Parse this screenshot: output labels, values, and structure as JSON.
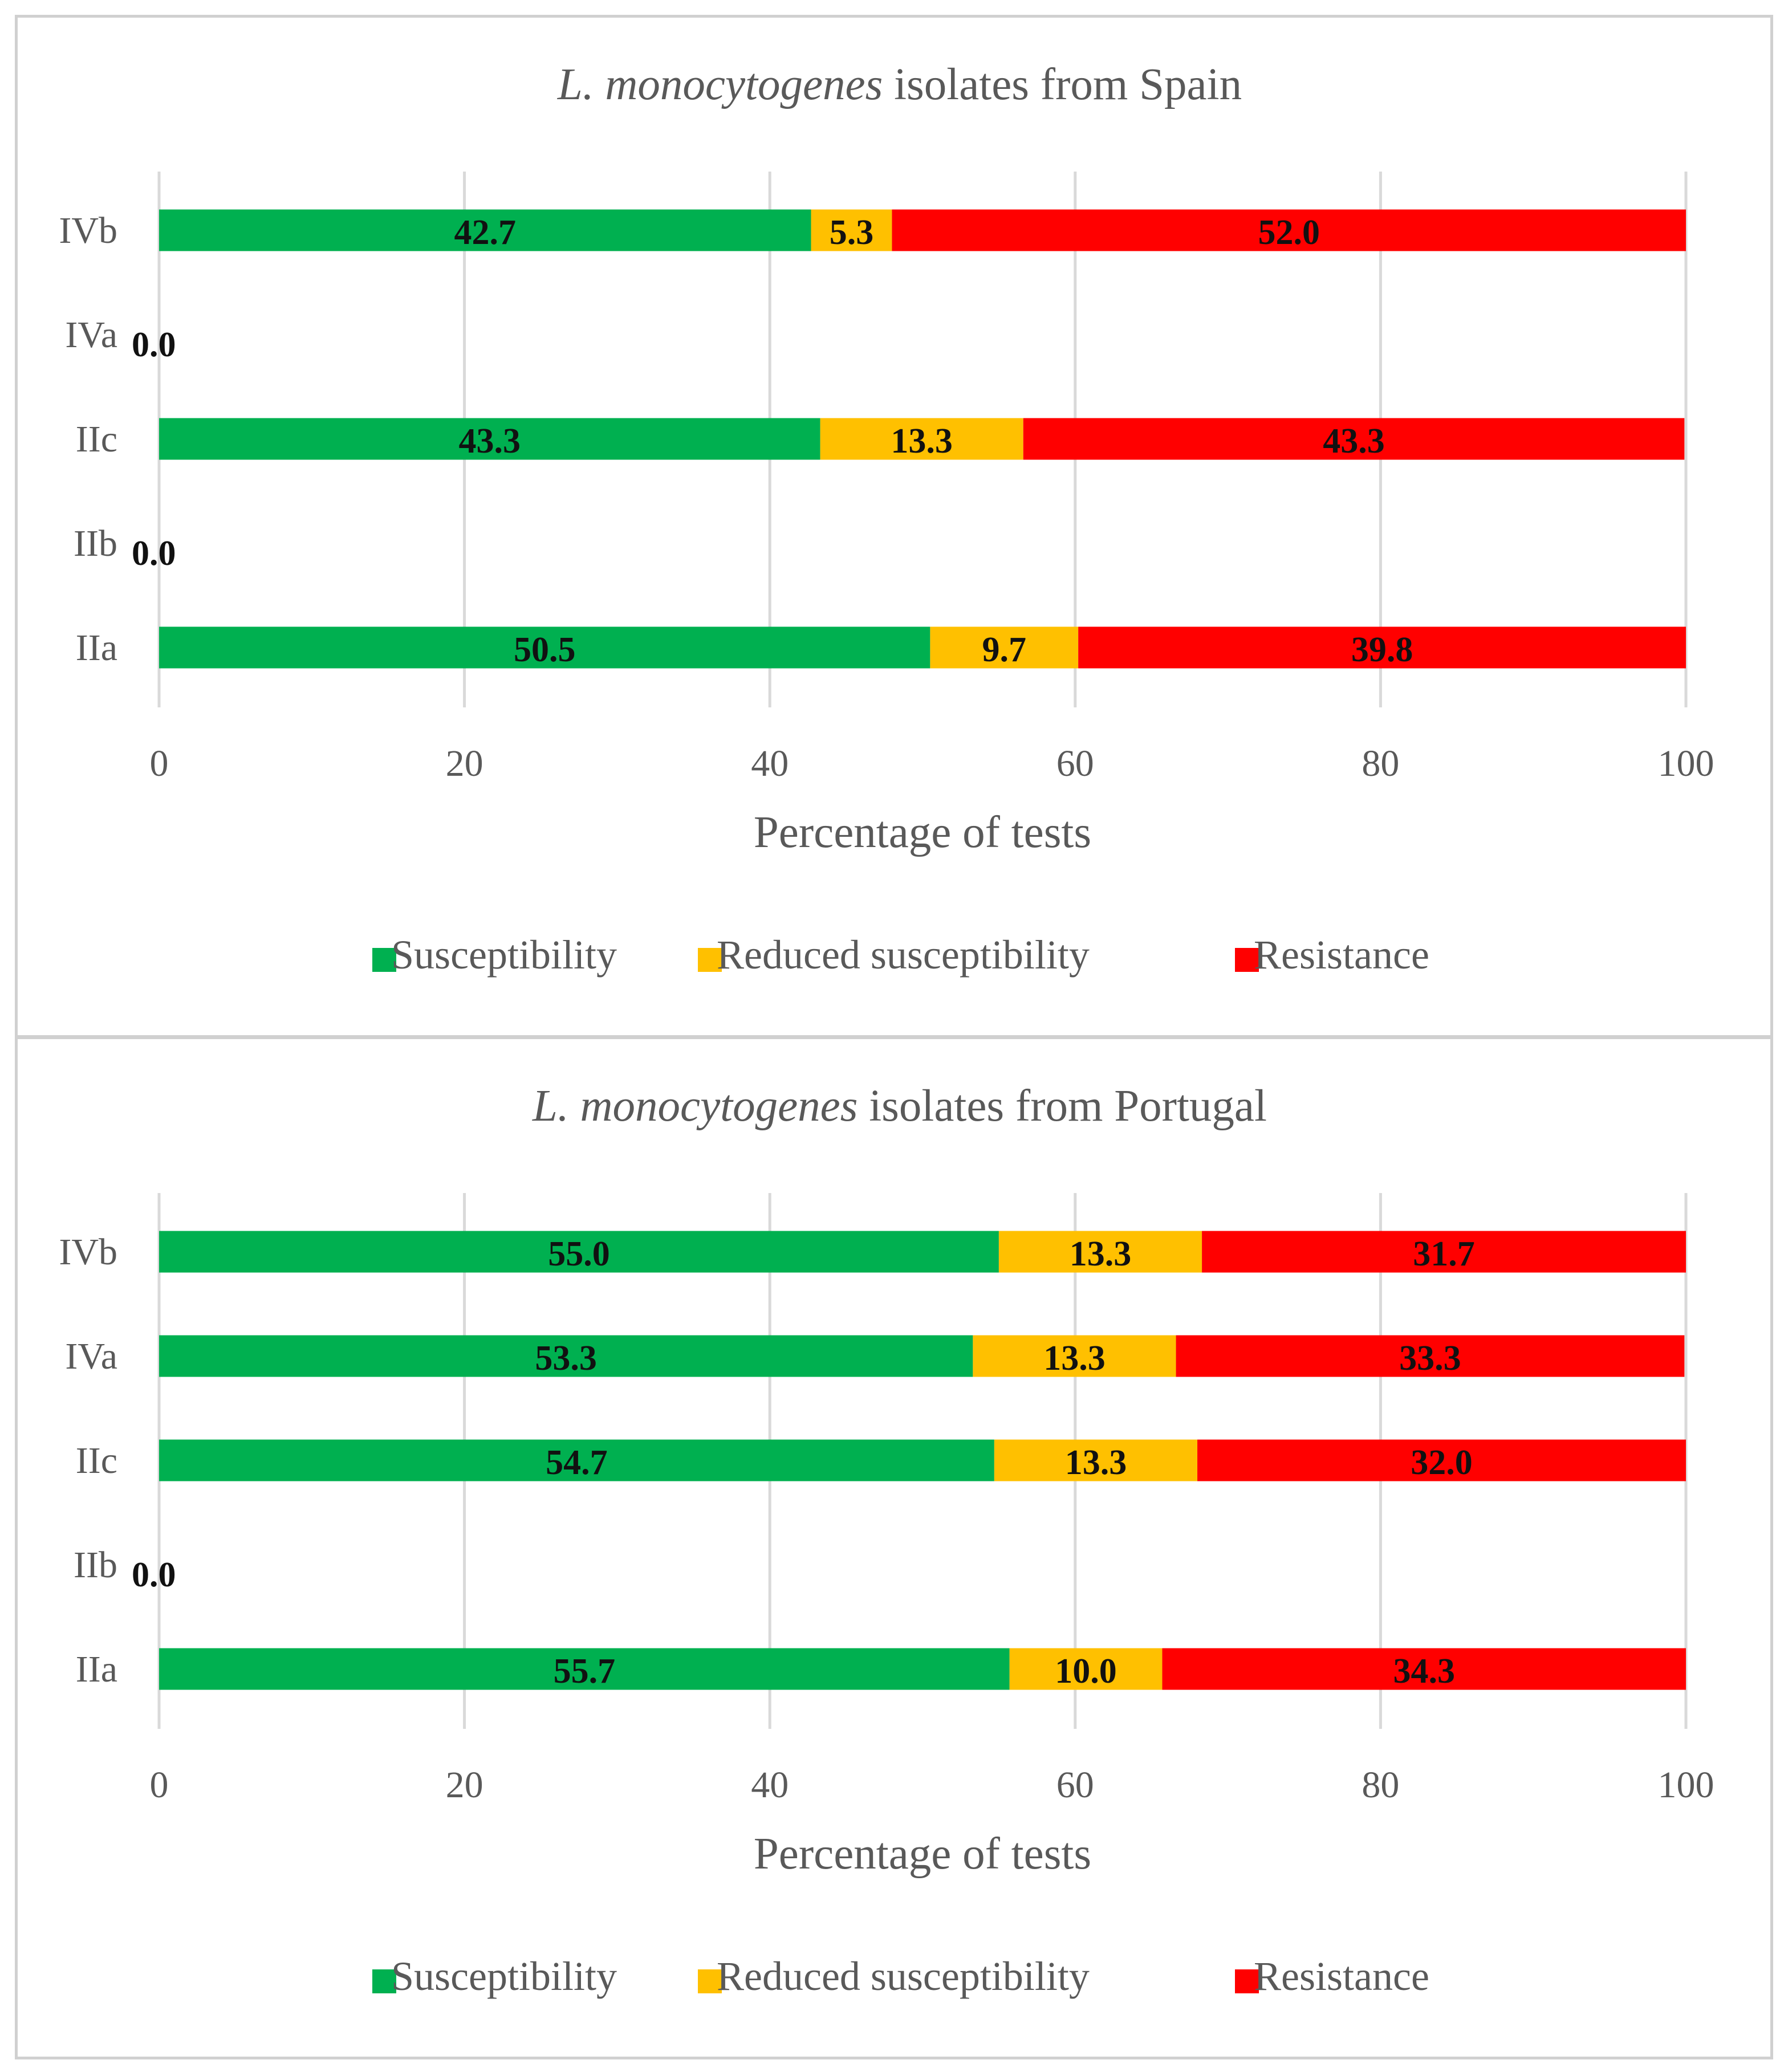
{
  "chart_data": [
    {
      "type": "bar",
      "orientation": "horizontal",
      "stacked": true,
      "title_italic": "L. monocytogenes",
      "title_rest": " isolates from Spain",
      "xlabel": "Percentage of tests",
      "ylabel": "",
      "xlim": [
        0,
        100
      ],
      "xticks": [
        0,
        20,
        40,
        60,
        80,
        100
      ],
      "grid": true,
      "legend_position": "bottom",
      "categories": [
        "IVb",
        "IVa",
        "IIc",
        "IIb",
        "IIa"
      ],
      "series": [
        {
          "name": "Susceptibility",
          "color": "#00b050",
          "values": [
            42.7,
            0,
            43.3,
            0,
            50.5
          ]
        },
        {
          "name": "Reduced susceptibility",
          "color": "#ffc000",
          "values": [
            5.3,
            0,
            13.3,
            0,
            9.7
          ]
        },
        {
          "name": "Resistance",
          "color": "#ff0000",
          "values": [
            52.0,
            0,
            43.3,
            0,
            39.8
          ]
        }
      ],
      "value_labels": [
        [
          "42.7",
          "5.3",
          "52.0"
        ],
        [
          "0.0"
        ],
        [
          "43.3",
          "13.3",
          "43.3"
        ],
        [
          "0.0"
        ],
        [
          "50.5",
          "9.7",
          "39.8"
        ]
      ]
    },
    {
      "type": "bar",
      "orientation": "horizontal",
      "stacked": true,
      "title_italic": "L. monocytogenes",
      "title_rest": " isolates from Portugal",
      "xlabel": "Percentage of tests",
      "ylabel": "",
      "xlim": [
        0,
        100
      ],
      "xticks": [
        0,
        20,
        40,
        60,
        80,
        100
      ],
      "grid": true,
      "legend_position": "bottom",
      "categories": [
        "IVb",
        "IVa",
        "IIc",
        "IIb",
        "IIa"
      ],
      "series": [
        {
          "name": "Susceptibility",
          "color": "#00b050",
          "values": [
            55.0,
            53.3,
            54.7,
            0,
            55.7
          ]
        },
        {
          "name": "Reduced susceptibility",
          "color": "#ffc000",
          "values": [
            13.3,
            13.3,
            13.3,
            0,
            10.0
          ]
        },
        {
          "name": "Resistance",
          "color": "#ff0000",
          "values": [
            31.7,
            33.3,
            32.0,
            0,
            34.3
          ]
        }
      ],
      "value_labels": [
        [
          "55.0",
          "13.3",
          "31.7"
        ],
        [
          "53.3",
          "13.3",
          "33.3"
        ],
        [
          "54.7",
          "13.3",
          "32.0"
        ],
        [
          "0.0"
        ],
        [
          "55.7",
          "10.0",
          "34.3"
        ]
      ]
    }
  ]
}
